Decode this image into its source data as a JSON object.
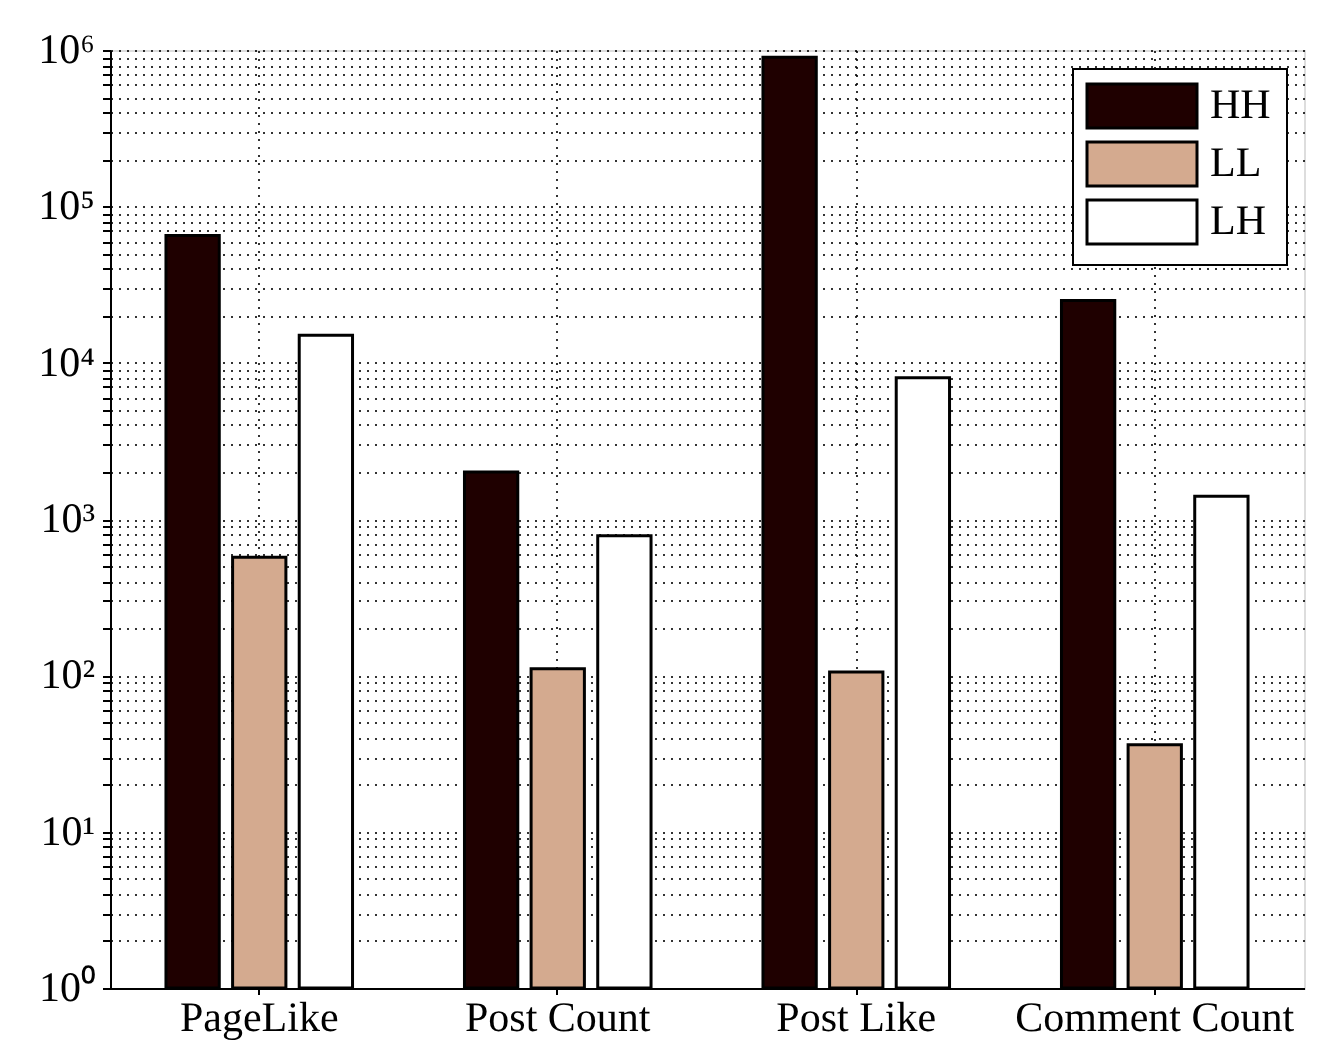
{
  "chart_data": {
    "type": "bar",
    "categories": [
      "PageLike",
      "Post Count",
      "Post Like",
      "Comment Count"
    ],
    "series": [
      {
        "name": "HH",
        "color": "#1f0000",
        "values": [
          65000,
          2000,
          900000,
          25000
        ]
      },
      {
        "name": "LL",
        "color": "#d4aa8f",
        "values": [
          570,
          110,
          105,
          36
        ]
      },
      {
        "name": "LH",
        "color": "#ffffff",
        "values": [
          15000,
          780,
          8000,
          1400
        ]
      }
    ],
    "log": true,
    "ylim": [
      1,
      1000000
    ],
    "yticks": [
      {
        "value": 1,
        "label": "10⁰"
      },
      {
        "value": 2,
        "label": null
      },
      {
        "value": 3,
        "label": null
      },
      {
        "value": 4,
        "label": null
      },
      {
        "value": 5,
        "label": null
      },
      {
        "value": 6,
        "label": null
      },
      {
        "value": 7,
        "label": null
      },
      {
        "value": 8,
        "label": null
      },
      {
        "value": 9,
        "label": null
      },
      {
        "value": 10,
        "label": "10¹"
      },
      {
        "value": 20,
        "label": null
      },
      {
        "value": 30,
        "label": null
      },
      {
        "value": 40,
        "label": null
      },
      {
        "value": 50,
        "label": null
      },
      {
        "value": 60,
        "label": null
      },
      {
        "value": 70,
        "label": null
      },
      {
        "value": 80,
        "label": null
      },
      {
        "value": 90,
        "label": null
      },
      {
        "value": 100,
        "label": "10²"
      },
      {
        "value": 200,
        "label": null
      },
      {
        "value": 300,
        "label": null
      },
      {
        "value": 400,
        "label": null
      },
      {
        "value": 500,
        "label": null
      },
      {
        "value": 600,
        "label": null
      },
      {
        "value": 700,
        "label": null
      },
      {
        "value": 800,
        "label": null
      },
      {
        "value": 900,
        "label": null
      },
      {
        "value": 1000,
        "label": "10³"
      },
      {
        "value": 2000,
        "label": null
      },
      {
        "value": 3000,
        "label": null
      },
      {
        "value": 4000,
        "label": null
      },
      {
        "value": 5000,
        "label": null
      },
      {
        "value": 6000,
        "label": null
      },
      {
        "value": 7000,
        "label": null
      },
      {
        "value": 8000,
        "label": null
      },
      {
        "value": 9000,
        "label": null
      },
      {
        "value": 10000,
        "label": "10⁴"
      },
      {
        "value": 20000,
        "label": null
      },
      {
        "value": 30000,
        "label": null
      },
      {
        "value": 40000,
        "label": null
      },
      {
        "value": 50000,
        "label": null
      },
      {
        "value": 60000,
        "label": null
      },
      {
        "value": 70000,
        "label": null
      },
      {
        "value": 80000,
        "label": null
      },
      {
        "value": 90000,
        "label": null
      },
      {
        "value": 100000,
        "label": "10⁵"
      },
      {
        "value": 200000,
        "label": null
      },
      {
        "value": 300000,
        "label": null
      },
      {
        "value": 400000,
        "label": null
      },
      {
        "value": 500000,
        "label": null
      },
      {
        "value": 600000,
        "label": null
      },
      {
        "value": 700000,
        "label": null
      },
      {
        "value": 800000,
        "label": null
      },
      {
        "value": 900000,
        "label": null
      },
      {
        "value": 1000000,
        "label": "10⁶"
      }
    ],
    "grid": true,
    "legend": "top right"
  }
}
